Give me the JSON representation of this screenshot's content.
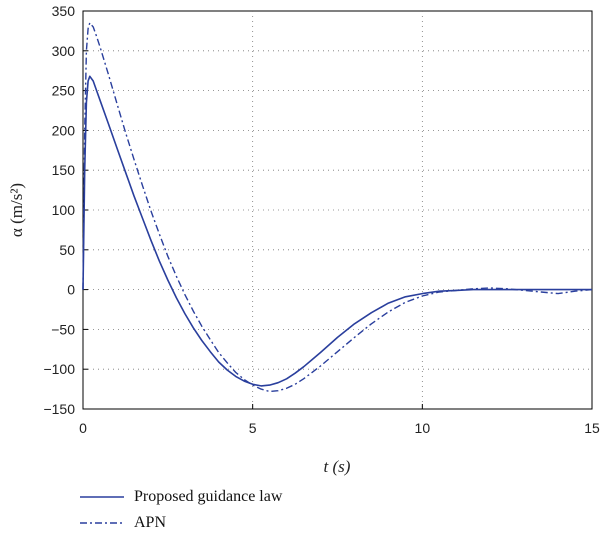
{
  "chart_data": {
    "type": "line",
    "xlabel": "t (s)",
    "ylabel": "α (m/s²)",
    "xlim": [
      0,
      15
    ],
    "ylim": [
      -150,
      350
    ],
    "xticks": [
      0,
      5,
      10,
      15
    ],
    "yticks": [
      -150,
      -100,
      -50,
      0,
      50,
      100,
      150,
      200,
      250,
      300,
      350
    ],
    "grid": true,
    "legend_position": "bottom-left",
    "series": [
      {
        "name": "Proposed guidance law",
        "style": "solid",
        "color": "#2a3f9d",
        "x": [
          0,
          0.05,
          0.1,
          0.15,
          0.2,
          0.3,
          0.4,
          0.5,
          0.75,
          1.0,
          1.25,
          1.5,
          1.75,
          2.0,
          2.25,
          2.5,
          2.75,
          3.0,
          3.25,
          3.5,
          3.75,
          4.0,
          4.25,
          4.5,
          4.75,
          5.0,
          5.25,
          5.5,
          5.75,
          6.0,
          6.25,
          6.5,
          6.75,
          7.0,
          7.5,
          8.0,
          8.5,
          9.0,
          9.5,
          10.0,
          10.5,
          11.0,
          11.5,
          12.0,
          12.5,
          13.0,
          13.5,
          14.0,
          14.5,
          15.0
        ],
        "y": [
          0,
          150,
          235,
          262,
          268,
          262,
          250,
          238,
          208,
          178,
          148,
          118,
          90,
          62,
          36,
          12,
          -10,
          -30,
          -48,
          -64,
          -78,
          -91,
          -101,
          -109,
          -115,
          -119,
          -121,
          -120,
          -117,
          -112,
          -105,
          -97,
          -88,
          -79,
          -60,
          -43,
          -29,
          -17,
          -9,
          -5,
          -2,
          -1,
          0,
          0,
          0,
          0,
          0,
          0,
          0,
          0
        ]
      },
      {
        "name": "APN",
        "style": "dashdot",
        "color": "#2a3f9d",
        "x": [
          0,
          0.05,
          0.1,
          0.15,
          0.2,
          0.3,
          0.4,
          0.5,
          0.75,
          1.0,
          1.25,
          1.5,
          1.75,
          2.0,
          2.25,
          2.5,
          2.75,
          3.0,
          3.25,
          3.5,
          3.75,
          4.0,
          4.25,
          4.5,
          4.75,
          5.0,
          5.25,
          5.5,
          5.75,
          6.0,
          6.25,
          6.5,
          6.75,
          7.0,
          7.5,
          8.0,
          8.5,
          9.0,
          9.5,
          10.0,
          10.5,
          11.0,
          11.5,
          12.0,
          12.5,
          13.0,
          13.5,
          14.0,
          14.5,
          15.0
        ],
        "y": [
          0,
          200,
          300,
          328,
          335,
          330,
          318,
          305,
          270,
          234,
          198,
          164,
          131,
          99,
          70,
          42,
          17,
          -6,
          -27,
          -46,
          -63,
          -79,
          -92,
          -104,
          -113,
          -120,
          -125,
          -128,
          -127,
          -124,
          -119,
          -112,
          -104,
          -96,
          -78,
          -60,
          -43,
          -28,
          -16,
          -8,
          -3,
          -1,
          1,
          2,
          1,
          -1,
          -3,
          -5,
          -2,
          0
        ]
      }
    ]
  }
}
